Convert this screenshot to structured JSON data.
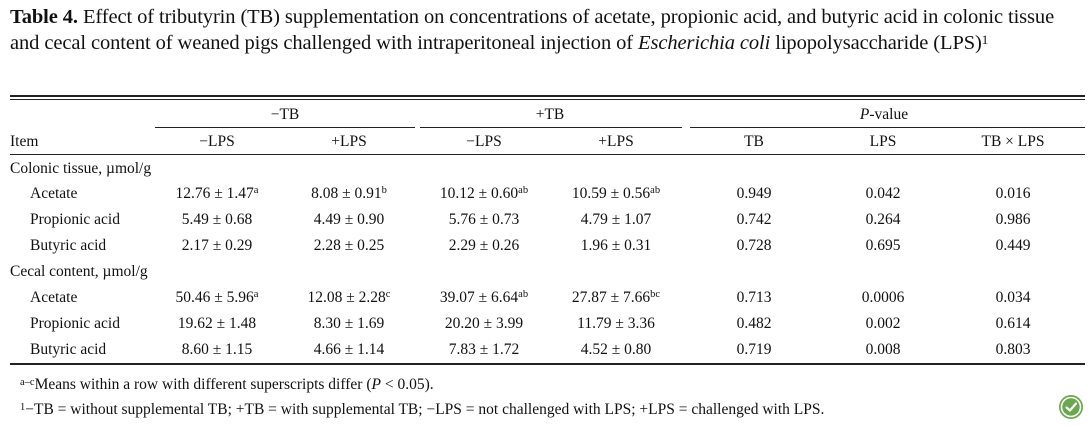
{
  "caption": {
    "label": "Table 4.",
    "text_a": " Effect of tributyrin (TB) supplementation on concentrations of acetate, propionic acid, and butyric acid in colonic tissue and cecal content of weaned pigs challenged with intraperitoneal injection of ",
    "text_italic": "Escherichia coli",
    "text_b": " lipopolysaccharide (LPS)",
    "sup": "1"
  },
  "header": {
    "group_minus_tb": "−TB",
    "group_plus_tb": "+TB",
    "group_pvalue_italic": "P",
    "group_pvalue_rest": "-value",
    "item": "Item",
    "cols": [
      "−LPS",
      "+LPS",
      "−LPS",
      "+LPS",
      "TB",
      "LPS",
      "TB × LPS"
    ]
  },
  "sections": [
    {
      "title": "Colonic tissue, µmol/g",
      "rows": [
        {
          "label": "Acetate",
          "values": [
            "12.76 ± 1.47",
            "8.08 ± 0.91",
            "10.12 ± 0.60",
            "10.59 ± 0.56",
            "0.949",
            "0.042",
            "0.016"
          ],
          "sups": [
            "a",
            "b",
            "ab",
            "ab",
            "",
            "",
            ""
          ]
        },
        {
          "label": "Propionic acid",
          "values": [
            "5.49 ± 0.68",
            "4.49 ± 0.90",
            "5.76 ± 0.73",
            "4.79 ± 1.07",
            "0.742",
            "0.264",
            "0.986"
          ],
          "sups": [
            "",
            "",
            "",
            "",
            "",
            "",
            ""
          ]
        },
        {
          "label": "Butyric acid",
          "values": [
            "2.17 ± 0.29",
            "2.28 ± 0.25",
            "2.29 ± 0.26",
            "1.96 ± 0.31",
            "0.728",
            "0.695",
            "0.449"
          ],
          "sups": [
            "",
            "",
            "",
            "",
            "",
            "",
            ""
          ]
        }
      ]
    },
    {
      "title": "Cecal content, µmol/g",
      "rows": [
        {
          "label": "Acetate",
          "values": [
            "50.46 ± 5.96",
            "12.08 ± 2.28",
            "39.07 ± 6.64",
            "27.87 ± 7.66",
            "0.713",
            "0.0006",
            "0.034"
          ],
          "sups": [
            "a",
            "c",
            "ab",
            "bc",
            "",
            "",
            ""
          ]
        },
        {
          "label": "Propionic acid",
          "values": [
            "19.62 ± 1.48",
            "8.30 ± 1.69",
            "20.20 ± 3.99",
            "11.79 ± 3.36",
            "0.482",
            "0.002",
            "0.614"
          ],
          "sups": [
            "",
            "",
            "",
            "",
            "",
            "",
            ""
          ]
        },
        {
          "label": "Butyric acid",
          "values": [
            "8.60 ± 1.15",
            "4.66 ± 1.14",
            "7.83 ± 1.72",
            "4.52 ± 0.80",
            "0.719",
            "0.008",
            "0.803"
          ],
          "sups": [
            "",
            "",
            "",
            "",
            "",
            "",
            ""
          ]
        }
      ]
    }
  ],
  "footnotes": {
    "f1_sup": "a–c",
    "f1_text_a": "Means within a row with different superscripts differ (",
    "f1_italic": "P",
    "f1_text_b": " < 0.05).",
    "f2_sup": "1",
    "f2_text": "−TB = without supplemental TB; +TB = with supplemental TB; −LPS = not challenged with LPS; +LPS = challenged with LPS."
  },
  "icons": {
    "logo": "leaf-check-logo-icon",
    "logo_color": "#6aa84f"
  }
}
